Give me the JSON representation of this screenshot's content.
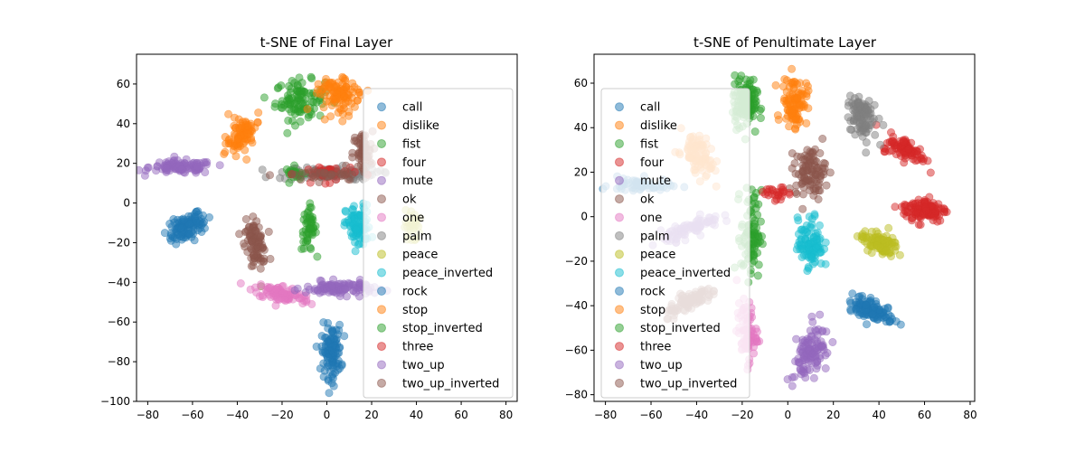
{
  "chart_data": [
    {
      "type": "scatter",
      "title": "t-SNE of Final Layer",
      "xlabel": "",
      "ylabel": "",
      "xlim": [
        -85,
        85
      ],
      "ylim": [
        -100,
        75
      ],
      "xticks": [
        -80,
        -60,
        -40,
        -20,
        0,
        20,
        40,
        60,
        80
      ],
      "yticks": [
        -100,
        -80,
        -60,
        -40,
        -20,
        0,
        20,
        40,
        60
      ],
      "grid": false,
      "legend": "right",
      "series": [
        {
          "name": "call",
          "color": "#1f77b4",
          "clusters": [
            {
              "cx": -62,
              "cy": -12,
              "rx": 9,
              "ry": 5,
              "rot": 35,
              "n": 110
            }
          ]
        },
        {
          "name": "dislike",
          "color": "#ff7f0e",
          "clusters": [
            {
              "cx": -38,
              "cy": 35,
              "rx": 5,
              "ry": 10,
              "rot": -25,
              "n": 90
            }
          ]
        },
        {
          "name": "fist",
          "color": "#2ca02c",
          "clusters": [
            {
              "cx": -12,
              "cy": 52,
              "rx": 10,
              "ry": 9,
              "rot": 0,
              "n": 100
            },
            {
              "cx": -8,
              "cy": -13,
              "rx": 3,
              "ry": 10,
              "rot": 0,
              "n": 50
            }
          ]
        },
        {
          "name": "four",
          "color": "#d62728",
          "clusters": []
        },
        {
          "name": "mute",
          "color": "#9467bd",
          "clusters": [
            {
              "cx": -65,
              "cy": 18,
              "rx": 13,
              "ry": 3,
              "rot": 0,
              "n": 110
            }
          ]
        },
        {
          "name": "ok",
          "color": "#8c564b",
          "clusters": [
            {
              "cx": -32,
              "cy": -20,
              "rx": 4,
              "ry": 10,
              "rot": 10,
              "n": 90
            },
            {
              "cx": 16,
              "cy": 25,
              "rx": 4,
              "ry": 10,
              "rot": 0,
              "n": 60
            }
          ]
        },
        {
          "name": "one",
          "color": "#e377c2",
          "clusters": [
            {
              "cx": -20,
              "cy": -46,
              "rx": 12,
              "ry": 4,
              "rot": -15,
              "n": 90
            }
          ]
        },
        {
          "name": "palm",
          "color": "#7f7f7f",
          "clusters": [
            {
              "cx": 0,
              "cy": 15,
              "rx": 20,
              "ry": 3,
              "rot": 0,
              "n": 90
            }
          ]
        },
        {
          "name": "peace",
          "color": "#bcbd22",
          "clusters": [
            {
              "cx": 38,
              "cy": -12,
              "rx": 3,
              "ry": 8,
              "rot": 0,
              "n": 30
            }
          ]
        },
        {
          "name": "peace_inverted",
          "color": "#17becf",
          "clusters": [
            {
              "cx": 14,
              "cy": -12,
              "rx": 5,
              "ry": 10,
              "rot": 0,
              "n": 90
            }
          ]
        },
        {
          "name": "rock",
          "color": "#1f77b4",
          "clusters": [
            {
              "cx": 2,
              "cy": -75,
              "rx": 4,
              "ry": 12,
              "rot": 0,
              "n": 110
            }
          ]
        },
        {
          "name": "stop",
          "color": "#ff7f0e",
          "clusters": [
            {
              "cx": 6,
              "cy": 55,
              "rx": 8,
              "ry": 8,
              "rot": 30,
              "n": 100
            }
          ]
        },
        {
          "name": "stop_inverted",
          "color": "#2ca02c",
          "clusters": [
            {
              "cx": -14,
              "cy": 15,
              "rx": 4,
              "ry": 3,
              "rot": 0,
              "n": 20
            }
          ]
        },
        {
          "name": "three",
          "color": "#d62728",
          "clusters": [
            {
              "cx": 0,
              "cy": 15,
              "rx": 12,
              "ry": 4,
              "rot": 0,
              "n": 30
            }
          ]
        },
        {
          "name": "two_up",
          "color": "#9467bd",
          "clusters": [
            {
              "cx": 6,
              "cy": -43,
              "rx": 14,
              "ry": 3,
              "rot": 0,
              "n": 110
            }
          ]
        },
        {
          "name": "two_up_inverted",
          "color": "#8c564b",
          "clusters": [
            {
              "cx": 0,
              "cy": 14,
              "rx": 18,
              "ry": 3,
              "rot": 0,
              "n": 40
            }
          ]
        }
      ]
    },
    {
      "type": "scatter",
      "title": "t-SNE of Penultimate Layer",
      "xlabel": "",
      "ylabel": "",
      "xlim": [
        -85,
        82
      ],
      "ylim": [
        -83,
        73
      ],
      "xticks": [
        -80,
        -60,
        -40,
        -20,
        0,
        20,
        40,
        60,
        80
      ],
      "yticks": [
        -80,
        -60,
        -40,
        -20,
        0,
        20,
        40,
        60
      ],
      "grid": false,
      "legend": "left",
      "series": [
        {
          "name": "call",
          "color": "#1f77b4",
          "clusters": [
            {
              "cx": -65,
              "cy": 14,
              "rx": 12,
              "ry": 3,
              "rot": 0,
              "n": 60
            }
          ]
        },
        {
          "name": "dislike",
          "color": "#ff7f0e",
          "clusters": [
            {
              "cx": 3,
              "cy": 52,
              "rx": 5,
              "ry": 10,
              "rot": 0,
              "n": 100
            }
          ]
        },
        {
          "name": "fist",
          "color": "#2ca02c",
          "clusters": [
            {
              "cx": -18,
              "cy": 50,
              "rx": 4,
              "ry": 10,
              "rot": 0,
              "n": 70
            },
            {
              "cx": -16,
              "cy": -8,
              "rx": 4,
              "ry": 18,
              "rot": 0,
              "n": 90
            }
          ]
        },
        {
          "name": "four",
          "color": "#d62728",
          "clusters": [
            {
              "cx": 60,
              "cy": 3,
              "rx": 9,
              "ry": 5,
              "rot": 0,
              "n": 110
            },
            {
              "cx": 52,
              "cy": 30,
              "rx": 9,
              "ry": 4,
              "rot": -25,
              "n": 90
            }
          ]
        },
        {
          "name": "mute",
          "color": "#9467bd",
          "clusters": [
            {
              "cx": 10,
              "cy": -60,
              "rx": 6,
              "ry": 12,
              "rot": -20,
              "n": 110
            }
          ]
        },
        {
          "name": "ok",
          "color": "#8c564b",
          "clusters": [
            {
              "cx": 10,
              "cy": 20,
              "rx": 6,
              "ry": 10,
              "rot": 0,
              "n": 100
            }
          ]
        },
        {
          "name": "one",
          "color": "#e377c2",
          "clusters": [
            {
              "cx": -18,
              "cy": -52,
              "rx": 4,
              "ry": 12,
              "rot": 0,
              "n": 80
            }
          ]
        },
        {
          "name": "palm",
          "color": "#7f7f7f",
          "clusters": [
            {
              "cx": 32,
              "cy": 45,
              "rx": 5,
              "ry": 10,
              "rot": 10,
              "n": 100
            }
          ]
        },
        {
          "name": "peace",
          "color": "#bcbd22",
          "clusters": [
            {
              "cx": 40,
              "cy": -12,
              "rx": 8,
              "ry": 4,
              "rot": -20,
              "n": 100
            }
          ]
        },
        {
          "name": "peace_inverted",
          "color": "#17becf",
          "clusters": [
            {
              "cx": 10,
              "cy": -12,
              "rx": 5,
              "ry": 10,
              "rot": 0,
              "n": 100
            }
          ]
        },
        {
          "name": "rock",
          "color": "#1f77b4",
          "clusters": [
            {
              "cx": 37,
              "cy": -42,
              "rx": 10,
              "ry": 4,
              "rot": -25,
              "n": 110
            }
          ]
        },
        {
          "name": "stop",
          "color": "#ff7f0e",
          "clusters": [
            {
              "cx": -40,
              "cy": 28,
              "rx": 5,
              "ry": 10,
              "rot": 25,
              "n": 90
            }
          ]
        },
        {
          "name": "stop_inverted",
          "color": "#2ca02c",
          "clusters": [
            {
              "cx": -20,
              "cy": 52,
              "rx": 4,
              "ry": 10,
              "rot": 0,
              "n": 60
            }
          ]
        },
        {
          "name": "three",
          "color": "#d62728",
          "clusters": [
            {
              "cx": -5,
              "cy": 10,
              "rx": 6,
              "ry": 3,
              "rot": 0,
              "n": 25
            }
          ]
        },
        {
          "name": "two_up",
          "color": "#9467bd",
          "clusters": [
            {
              "cx": -42,
              "cy": -5,
              "rx": 12,
              "ry": 3,
              "rot": 20,
              "n": 90
            }
          ]
        },
        {
          "name": "two_up_inverted",
          "color": "#8c564b",
          "clusters": [
            {
              "cx": -42,
              "cy": -38,
              "rx": 12,
              "ry": 3,
              "rot": 30,
              "n": 90
            }
          ]
        }
      ]
    }
  ]
}
